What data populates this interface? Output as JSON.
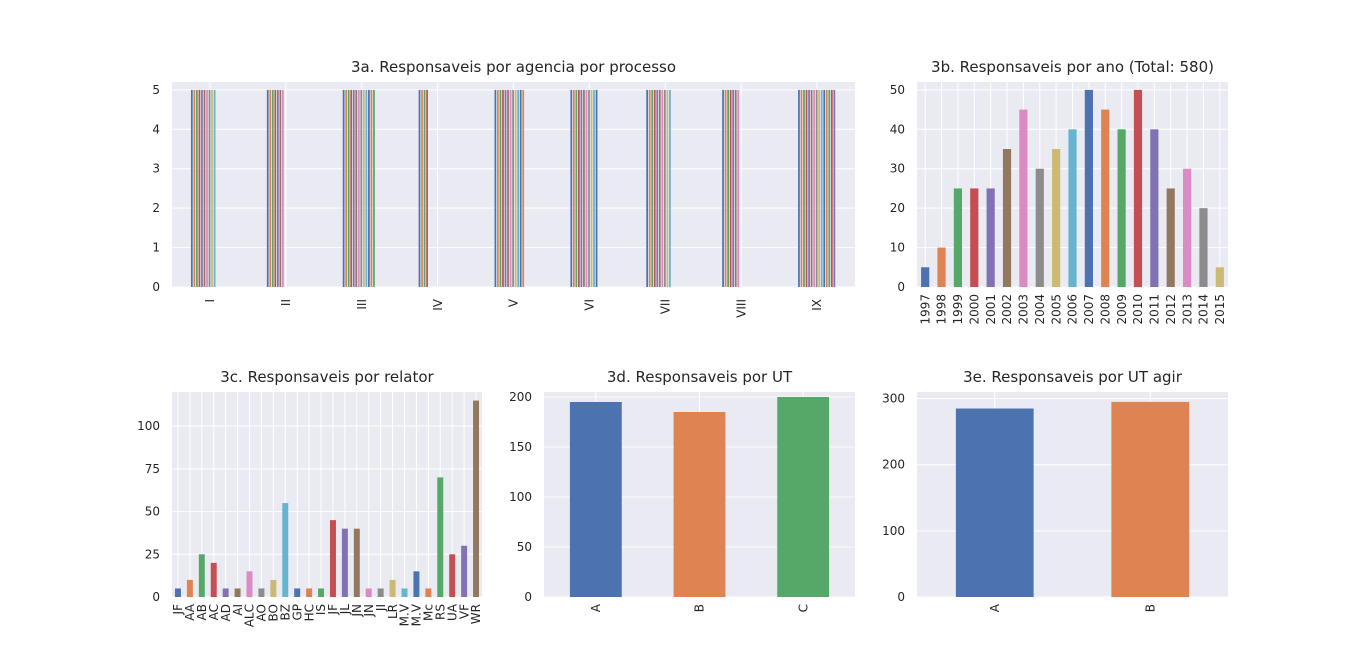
{
  "colors": {
    "cycle": [
      "#4c72b0",
      "#dd8452",
      "#55a868",
      "#c44e52",
      "#8172b3",
      "#937860",
      "#da8bc3",
      "#8c8c8c",
      "#ccb974",
      "#64b5cd"
    ],
    "plot_bg": "#eaeaf2",
    "grid": "#ffffff",
    "text": "#262626"
  },
  "chart_data": [
    {
      "id": "3a",
      "type": "bar",
      "title": "3a. Responsaveis por agencia por processo",
      "categories": [
        "I",
        "II",
        "III",
        "IV",
        "V",
        "VI",
        "VII",
        "VIII",
        "IX"
      ],
      "bar_counts": [
        10,
        7,
        13,
        4,
        12,
        11,
        10,
        7,
        15
      ],
      "bar_value": 5,
      "ylim": [
        0,
        5.2
      ],
      "yticks": [
        0,
        1,
        2,
        3,
        4,
        5
      ],
      "grid": true
    },
    {
      "id": "3b",
      "type": "bar",
      "title": "3b. Responsaveis por ano (Total: 580)",
      "categories": [
        "1997",
        "1998",
        "1999",
        "2000",
        "2001",
        "2002",
        "2003",
        "2004",
        "2005",
        "2006",
        "2007",
        "2008",
        "2009",
        "2010",
        "2011",
        "2012",
        "2013",
        "2014",
        "2015"
      ],
      "values": [
        5,
        10,
        25,
        25,
        25,
        35,
        45,
        30,
        35,
        40,
        50,
        45,
        40,
        50,
        40,
        25,
        30,
        20,
        5
      ],
      "ylim": [
        0,
        52
      ],
      "yticks": [
        0,
        10,
        20,
        30,
        40,
        50
      ],
      "grid": true
    },
    {
      "id": "3c",
      "type": "bar",
      "title": "3c. Responsaveis por relator",
      "categories": [
        "JF",
        "AA",
        "AB",
        "AC",
        "AD",
        "AI",
        "ALC",
        "AO",
        "BO",
        "BZ",
        "GP",
        "HC",
        "IS",
        "JF",
        "JL",
        "JN",
        "JN",
        "JI",
        "LR",
        "M.V",
        "M.V",
        "Mc",
        "RS",
        "UA",
        "VF",
        "WR"
      ],
      "values": [
        5,
        10,
        25,
        20,
        5,
        5,
        15,
        5,
        10,
        55,
        5,
        5,
        5,
        45,
        40,
        40,
        5,
        5,
        10,
        5,
        15,
        5,
        70,
        25,
        30,
        115
      ],
      "ylim": [
        0,
        120
      ],
      "yticks": [
        0,
        25,
        50,
        75,
        100
      ],
      "grid": true
    },
    {
      "id": "3d",
      "type": "bar",
      "title": "3d. Responsaveis por UT",
      "categories": [
        "A",
        "B",
        "C"
      ],
      "values": [
        195,
        185,
        200
      ],
      "ylim": [
        0,
        205
      ],
      "yticks": [
        0,
        50,
        100,
        150,
        200
      ],
      "grid": true
    },
    {
      "id": "3e",
      "type": "bar",
      "title": "3e. Responsaveis por UT agir",
      "categories": [
        "A",
        "B"
      ],
      "values": [
        285,
        295
      ],
      "ylim": [
        0,
        310
      ],
      "yticks": [
        0,
        100,
        200,
        300
      ],
      "grid": true
    }
  ]
}
